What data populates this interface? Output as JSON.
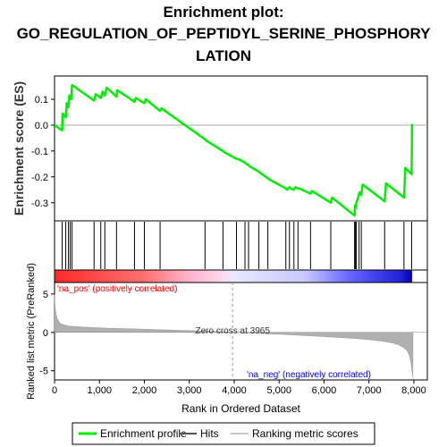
{
  "title_lines": [
    "Enrichment plot:",
    "GO_REGULATION_OF_PEPTIDYL_SERINE_PHOSPHORY",
    "LATION"
  ],
  "colors": {
    "es_line": "#00ee00",
    "hit": "#000000",
    "ranking_fill": "#b0b0b0",
    "pos_text": "#ff0000",
    "neg_text": "#0000ff",
    "zero_line": "#aaaaaa"
  },
  "chart_data": [
    {
      "type": "line",
      "name": "enrichment-profile",
      "ylabel": "Enrichment score (ES)",
      "ylim": [
        -0.37,
        0.19
      ],
      "yticks": [
        -0.3,
        -0.2,
        -0.1,
        0.0,
        0.1
      ],
      "ytick_labels": [
        "-0.3",
        "-0.2",
        "-0.1",
        "0.0",
        "0.1"
      ],
      "grid": false,
      "x": [
        0,
        170,
        180,
        250,
        270,
        310,
        330,
        370,
        390,
        880,
        920,
        1030,
        1070,
        1120,
        1160,
        1380,
        1400,
        1780,
        1810,
        2000,
        2030,
        2350,
        2380,
        3350,
        3380,
        3750,
        3780,
        4050,
        4080,
        4240,
        4270,
        4320,
        4350,
        4550,
        4580,
        4750,
        4780,
        5150,
        5180,
        5230,
        5260,
        5330,
        5360,
        5420,
        5450,
        5700,
        5730,
        6150,
        6180,
        6680,
        6690,
        6710,
        6720,
        6760,
        6790,
        6830,
        6860,
        7350,
        7380,
        7780,
        7810,
        7950,
        7960
      ],
      "y": [
        0.0,
        -0.02,
        0.045,
        0.03,
        0.085,
        0.07,
        0.115,
        0.1,
        0.155,
        0.095,
        0.12,
        0.105,
        0.13,
        0.115,
        0.145,
        0.11,
        0.135,
        0.09,
        0.105,
        0.085,
        0.1,
        0.055,
        0.065,
        -0.055,
        -0.06,
        -0.1,
        -0.105,
        -0.13,
        -0.13,
        -0.145,
        -0.15,
        -0.155,
        -0.16,
        -0.18,
        -0.185,
        -0.205,
        -0.21,
        -0.245,
        -0.25,
        -0.24,
        -0.245,
        -0.25,
        -0.24,
        -0.245,
        -0.245,
        -0.265,
        -0.255,
        -0.3,
        -0.28,
        -0.35,
        -0.31,
        -0.32,
        -0.3,
        -0.28,
        -0.26,
        -0.27,
        -0.23,
        -0.295,
        -0.225,
        -0.28,
        -0.165,
        -0.19,
        0.005
      ]
    },
    {
      "type": "scatter",
      "name": "hits",
      "x": [
        170,
        250,
        310,
        350,
        390,
        880,
        1030,
        1120,
        1380,
        1780,
        2000,
        2350,
        3350,
        3750,
        4050,
        4240,
        4320,
        4550,
        4750,
        5150,
        5230,
        5330,
        5420,
        5700,
        6150,
        6680,
        6700,
        6720,
        6780,
        6830,
        7350,
        7780,
        7950
      ]
    },
    {
      "type": "area",
      "name": "ranked-list-metric",
      "ylabel": "Ranked list metric (PreRanked)",
      "xlabel": "Rank in Ordered Dataset",
      "xlim": [
        0,
        8300
      ],
      "ylim": [
        -6.2,
        6.5
      ],
      "xticks": [
        0,
        1000,
        2000,
        3000,
        4000,
        5000,
        6000,
        7000,
        8000
      ],
      "xtick_labels": [
        "0",
        "1,000",
        "2,000",
        "3,000",
        "4,000",
        "5,000",
        "6,000",
        "7,000",
        "8,000"
      ],
      "yticks": [
        -5,
        0,
        5
      ],
      "ytick_labels": [
        "-5",
        "0",
        "5"
      ],
      "x": [
        0,
        10,
        30,
        60,
        100,
        150,
        200,
        300,
        500,
        800,
        1200,
        1800,
        2500,
        3200,
        3700,
        3965,
        4500,
        5200,
        6000,
        6700,
        7000,
        7300,
        7500,
        7650,
        7750,
        7850,
        7900,
        7930,
        7960,
        7980
      ],
      "values": [
        5.0,
        3.5,
        2.5,
        1.8,
        1.4,
        1.1,
        1.0,
        0.85,
        0.75,
        0.65,
        0.55,
        0.45,
        0.32,
        0.2,
        0.1,
        0.0,
        -0.12,
        -0.3,
        -0.55,
        -0.8,
        -0.95,
        -1.15,
        -1.35,
        -1.6,
        -1.9,
        -2.4,
        -3.0,
        -3.8,
        -5.0,
        -6.0
      ],
      "annotations": {
        "pos": "'na_pos' (positively correlated)",
        "neg": "'na_neg' (negatively correlated)",
        "zero": "Zero cross at 3965",
        "zero_x": 3965
      }
    }
  ],
  "legend": {
    "position": "bottom",
    "items": [
      {
        "label": "Enrichment profile",
        "color": "#00ee00",
        "style": "thick-line"
      },
      {
        "label": "Hits",
        "color": "#555555",
        "style": "line"
      },
      {
        "label": "Ranking metric scores",
        "color": "#c8c8c8",
        "style": "line"
      }
    ]
  }
}
